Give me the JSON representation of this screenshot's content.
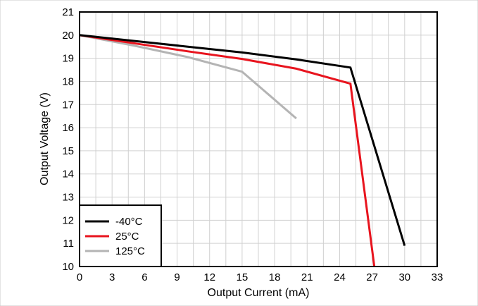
{
  "chart_data": {
    "type": "line",
    "xlabel": "Output Current (mA)",
    "ylabel": "Output Voltage (V)",
    "xlim": [
      0,
      33
    ],
    "ylim": [
      10,
      21
    ],
    "x_ticks": [
      "0",
      "3",
      "6",
      "9",
      "12",
      "15",
      "18",
      "21",
      "24",
      "27",
      "30",
      "33"
    ],
    "y_ticks": [
      "10",
      "11",
      "12",
      "13",
      "14",
      "15",
      "16",
      "17",
      "18",
      "19",
      "20",
      "21"
    ],
    "grid": true,
    "legend_position": "bottom-left",
    "series": [
      {
        "name": "-40°C",
        "color": "#000000",
        "points": [
          [
            0,
            20.0
          ],
          [
            5,
            19.75
          ],
          [
            10,
            19.5
          ],
          [
            15,
            19.25
          ],
          [
            20,
            18.95
          ],
          [
            25,
            18.6
          ],
          [
            30,
            10.9
          ]
        ]
      },
      {
        "name": "25°C",
        "color": "#e8141e",
        "points": [
          [
            0,
            20.0
          ],
          [
            5,
            19.65
          ],
          [
            10,
            19.3
          ],
          [
            15,
            18.97
          ],
          [
            20,
            18.55
          ],
          [
            25,
            17.9
          ],
          [
            27.2,
            10.0
          ]
        ]
      },
      {
        "name": "125°C",
        "color": "#b4b4b4",
        "points": [
          [
            0,
            20.0
          ],
          [
            5,
            19.55
          ],
          [
            10,
            19.05
          ],
          [
            15,
            18.42
          ],
          [
            20,
            16.4
          ]
        ]
      }
    ]
  }
}
